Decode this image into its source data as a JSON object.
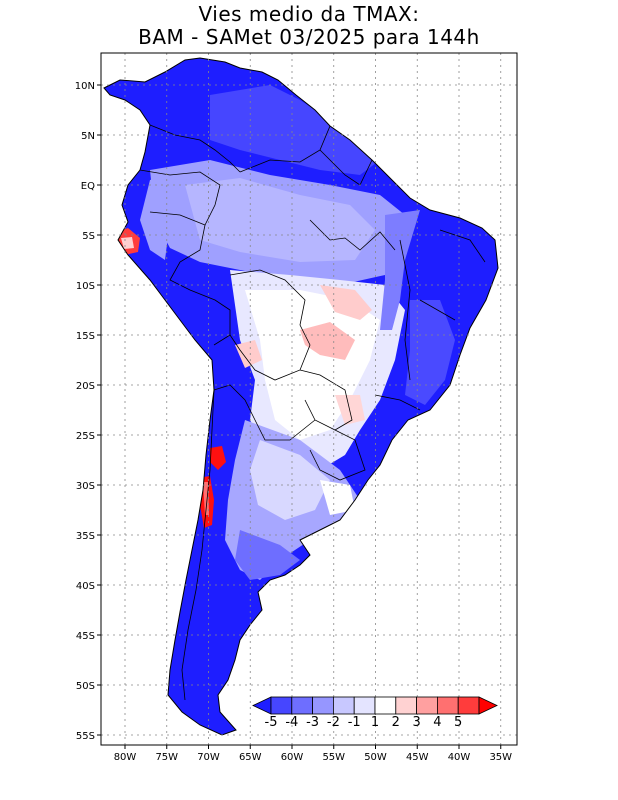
{
  "title": {
    "line1": "Vies medio da TMAX:",
    "line2": "BAM - SAMet 03/2025  para 144h"
  },
  "map": {
    "region": "South America",
    "lat_range": [
      -56,
      13
    ],
    "lon_range": [
      -84,
      -35
    ],
    "lat_ticks": [
      {
        "value": 10,
        "label": "10N"
      },
      {
        "value": 5,
        "label": "5N"
      },
      {
        "value": 0,
        "label": "EQ"
      },
      {
        "value": -5,
        "label": "5S"
      },
      {
        "value": -10,
        "label": "10S"
      },
      {
        "value": -15,
        "label": "15S"
      },
      {
        "value": -20,
        "label": "20S"
      },
      {
        "value": -25,
        "label": "25S"
      },
      {
        "value": -30,
        "label": "30S"
      },
      {
        "value": -35,
        "label": "35S"
      },
      {
        "value": -40,
        "label": "40S"
      },
      {
        "value": -45,
        "label": "45S"
      },
      {
        "value": -50,
        "label": "50S"
      },
      {
        "value": -55,
        "label": "55S"
      }
    ],
    "lon_ticks": [
      {
        "value": -80,
        "label": "80W"
      },
      {
        "value": -75,
        "label": "75W"
      },
      {
        "value": -70,
        "label": "70W"
      },
      {
        "value": -65,
        "label": "65W"
      },
      {
        "value": -60,
        "label": "60W"
      },
      {
        "value": -55,
        "label": "55W"
      },
      {
        "value": -50,
        "label": "50W"
      },
      {
        "value": -45,
        "label": "45W"
      },
      {
        "value": -40,
        "label": "40W"
      },
      {
        "value": -35,
        "label": "35W"
      }
    ]
  },
  "colorbar": {
    "labels": [
      "-5",
      "-4",
      "-3",
      "-2",
      "-1",
      "1",
      "2",
      "3",
      "4",
      "5"
    ],
    "colors": [
      "#1e1eff",
      "#4646ff",
      "#6e6eff",
      "#9696ff",
      "#c8c8ff",
      "#e4e4ff",
      "#ffffff",
      "#ffd2d2",
      "#ffa0a0",
      "#ff7070",
      "#ff3c3c",
      "#ff0000"
    ]
  },
  "colors": {
    "strong_blue": "#1e1eff",
    "mid_blue": "#6e6eff",
    "light_blue": "#9fa0ff",
    "pale_blue": "#d8d8ff",
    "pink": "#ffbcbc",
    "red": "#ff1010"
  }
}
